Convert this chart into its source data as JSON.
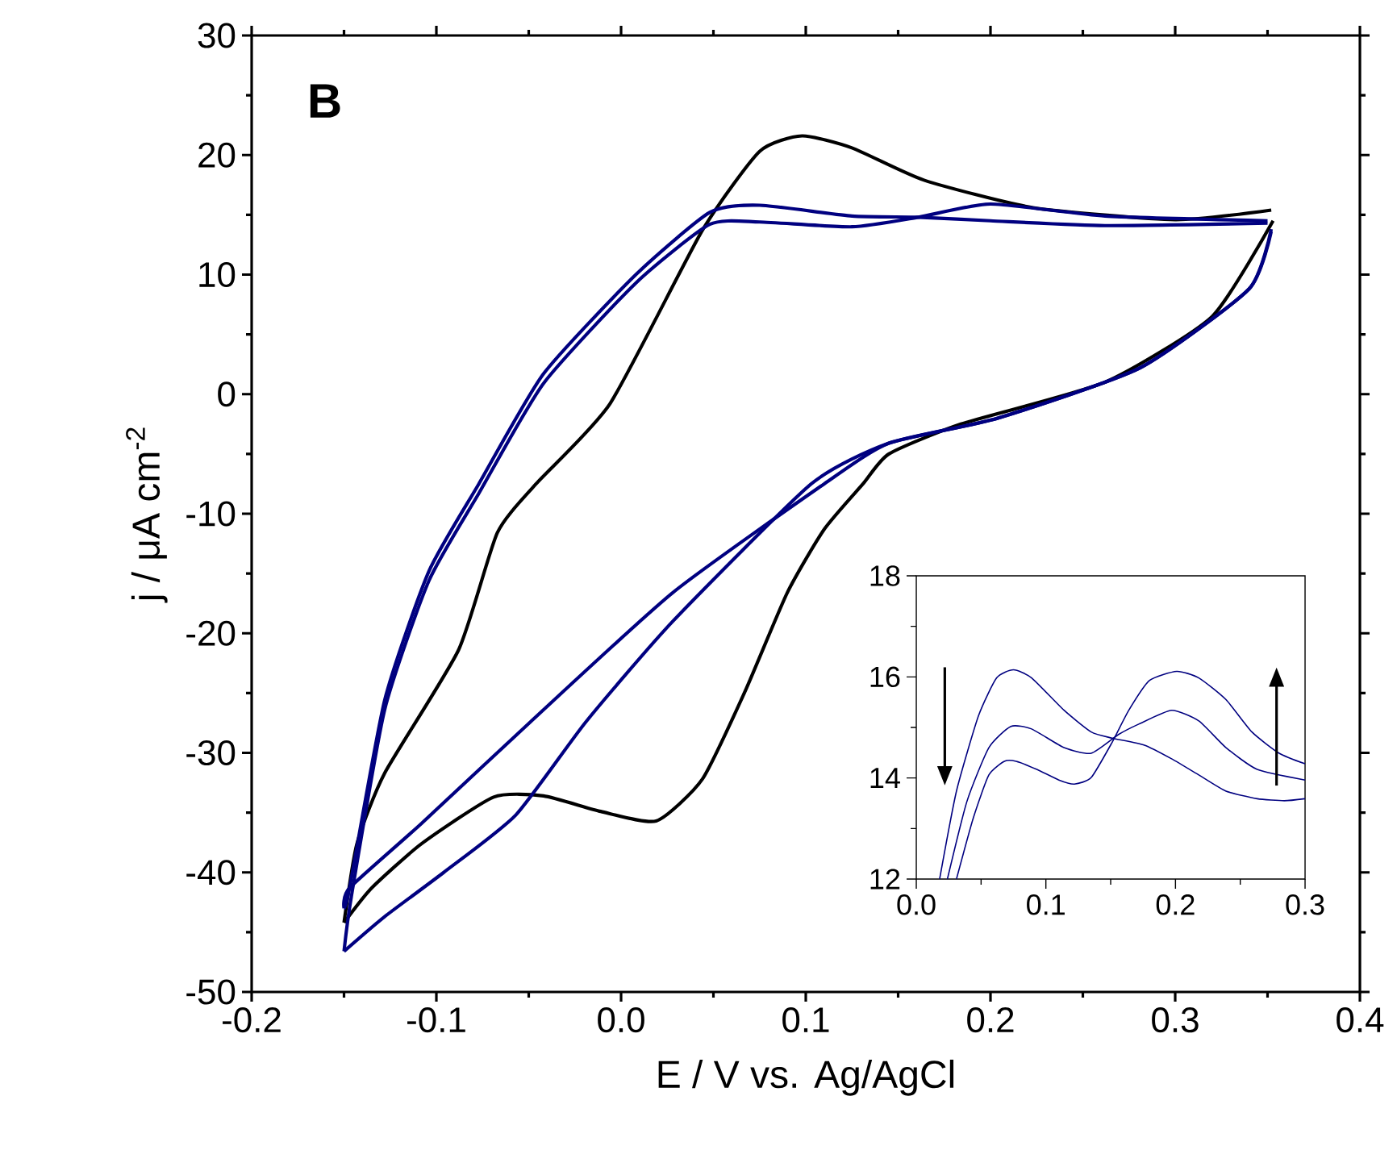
{
  "chart_data": [
    {
      "type": "line",
      "xlabel": "E / V vs. Ag/AgCl",
      "ylabel": "j / μA cm$^{-2}$",
      "annotations": [
        "B"
      ],
      "xlim": [
        -0.2,
        0.4
      ],
      "ylim": [
        -50,
        30
      ],
      "xticks": [
        -0.2,
        -0.1,
        {
          "value": 0,
          "label": "0.0"
        },
        0.1,
        0.2,
        0.3,
        0.4
      ],
      "yticks": [
        -50,
        -40,
        -30,
        -20,
        -10,
        0,
        10,
        20,
        30
      ],
      "marker": "none",
      "line_style": "solid",
      "series": [
        {
          "color": "#000000",
          "x": [
            -0.15,
            -0.143,
            -0.128,
            -0.088,
            -0.067,
            -0.046,
            -0.006,
            0.044,
            0.075,
            0.098,
            0.125,
            0.164,
            0.223,
            0.3,
            0.352
          ],
          "values": [
            -44.2,
            -37.6,
            -31.7,
            -21.4,
            -11.6,
            -7.5,
            -0.8,
            13.7,
            20.3,
            21.6,
            20.6,
            17.9,
            15.6,
            14.6,
            15.4
          ]
        },
        {
          "color": "#000000",
          "x": [
            0.353,
            0.32,
            0.262,
            0.184,
            0.145,
            0.131,
            0.11,
            0.09,
            0.067,
            0.044,
            0.019,
            -0.011,
            -0.042,
            -0.069,
            -0.108,
            -0.135,
            -0.15
          ],
          "values": [
            14.5,
            6.5,
            1.0,
            -2.5,
            -5.0,
            -7.5,
            -11.3,
            -16.6,
            -24.9,
            -32.2,
            -35.7,
            -34.9,
            -33.6,
            -33.7,
            -37.6,
            -41.3,
            -44.2
          ]
        },
        {
          "color": "#000080",
          "x": [
            -0.15,
            -0.147,
            -0.128,
            -0.104,
            -0.077,
            -0.042,
            0.008,
            0.048,
            0.075,
            0.125,
            0.161,
            0.2,
            0.262,
            0.35
          ],
          "values": [
            -43.0,
            -41.3,
            -25.6,
            -14.8,
            -7.5,
            1.7,
            10.0,
            15.2,
            15.8,
            14.9,
            14.8,
            14.5,
            14.1,
            14.3
          ]
        },
        {
          "color": "#000080",
          "x": [
            0.352,
            0.34,
            0.281,
            0.204,
            0.145,
            0.11,
            0.028,
            -0.049,
            -0.108,
            -0.147,
            -0.15
          ],
          "values": [
            13.8,
            8.8,
            2.2,
            -2.0,
            -4.1,
            -7.5,
            -16.6,
            -27.4,
            -35.9,
            -41.3,
            -43.0
          ]
        },
        {
          "color": "#000080",
          "x": [
            -0.15,
            -0.146,
            -0.128,
            -0.104,
            -0.077,
            -0.042,
            0.008,
            0.048,
            0.075,
            0.125,
            0.161,
            0.2,
            0.262,
            0.35
          ],
          "values": [
            -46.6,
            -42.0,
            -26.4,
            -15.6,
            -8.3,
            0.9,
            9.3,
            14.2,
            14.4,
            14.0,
            14.8,
            15.9,
            14.9,
            14.5
          ]
        },
        {
          "color": "#000080",
          "x": [
            0.352,
            0.34,
            0.281,
            0.204,
            0.145,
            0.103,
            0.028,
            -0.019,
            -0.057,
            -0.096,
            -0.128,
            -0.15
          ],
          "values": [
            13.6,
            8.8,
            2.2,
            -2.0,
            -4.1,
            -7.5,
            -19.0,
            -27.4,
            -35.2,
            -40.0,
            -43.7,
            -46.6
          ]
        }
      ]
    },
    {
      "type": "line",
      "xlim": [
        0,
        0.3
      ],
      "ylim": [
        12,
        18
      ],
      "xticks": [
        {
          "value": 0,
          "label": "0.0"
        },
        0.1,
        0.2,
        0.3
      ],
      "yticks": [
        12,
        14,
        16,
        18
      ],
      "marker": "none",
      "line_style": "solid",
      "series": [
        {
          "color": "#000080",
          "x": [
            0.018,
            0.031,
            0.048,
            0.062,
            0.075,
            0.089,
            0.114,
            0.135,
            0.151,
            0.176,
            0.197,
            0.218,
            0.239,
            0.263,
            0.284,
            0.3
          ],
          "values": [
            12.0,
            13.74,
            15.23,
            15.98,
            16.14,
            15.98,
            15.34,
            14.91,
            14.79,
            14.65,
            14.38,
            14.06,
            13.74,
            13.59,
            13.55,
            13.59
          ]
        },
        {
          "color": "#000080",
          "x": [
            0.024,
            0.039,
            0.056,
            0.073,
            0.089,
            0.114,
            0.135,
            0.156,
            0.172,
            0.197,
            0.218,
            0.239,
            0.263,
            0.3
          ],
          "values": [
            12.0,
            13.53,
            14.6,
            15.02,
            14.97,
            14.6,
            14.49,
            14.86,
            15.07,
            15.34,
            15.13,
            14.6,
            14.17,
            13.96
          ]
        },
        {
          "color": "#000080",
          "x": [
            0.031,
            0.044,
            0.056,
            0.068,
            0.077,
            0.093,
            0.11,
            0.122,
            0.135,
            0.151,
            0.164,
            0.18,
            0.201,
            0.218,
            0.239,
            0.259,
            0.28,
            0.3
          ],
          "values": [
            12.0,
            13.21,
            14.06,
            14.33,
            14.33,
            14.17,
            13.96,
            13.88,
            14.01,
            14.7,
            15.34,
            15.93,
            16.11,
            15.98,
            15.55,
            14.91,
            14.49,
            14.28
          ]
        }
      ]
    }
  ]
}
